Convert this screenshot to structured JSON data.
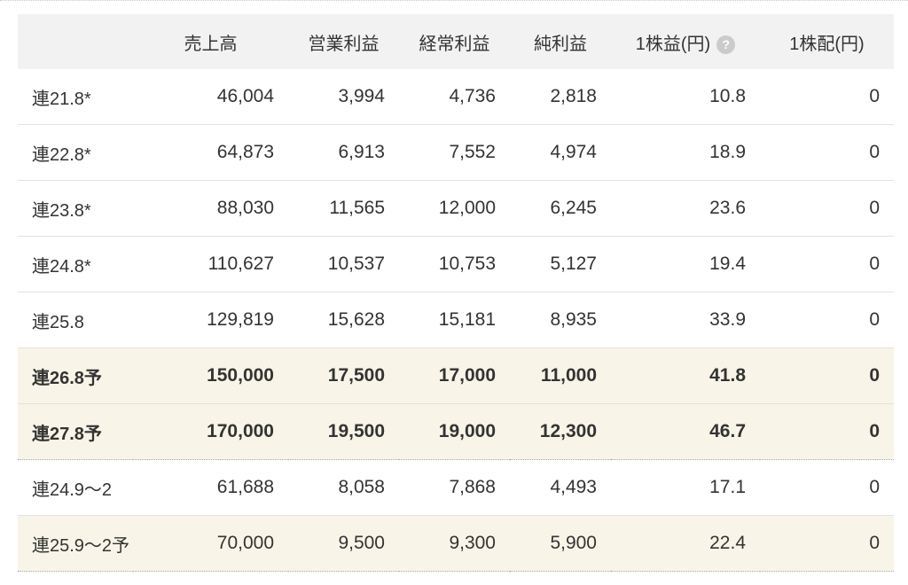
{
  "colors": {
    "header_bg": "#f2f2f2",
    "highlight_bg": "#f8f4e7",
    "text": "#333333",
    "border_solid": "#e2e2e2",
    "border_dotted": "#a9a9a9",
    "help_icon_bg": "#cbcbcb"
  },
  "table": {
    "columns": {
      "fiscal_period": "",
      "revenue": "売上高",
      "operating_profit": "営業利益",
      "ordinary_profit": "経常利益",
      "net_profit": "純利益",
      "eps": "1株益(円)",
      "dividend": "1株配(円)"
    },
    "help_icon_label": "?",
    "rows": [
      {
        "label": "連21.8*",
        "values": [
          "46,004",
          "3,994",
          "4,736",
          "2,818",
          "10.8",
          "0"
        ]
      },
      {
        "label": "連22.8*",
        "values": [
          "64,873",
          "6,913",
          "7,552",
          "4,974",
          "18.9",
          "0"
        ]
      },
      {
        "label": "連23.8*",
        "values": [
          "88,030",
          "11,565",
          "12,000",
          "6,245",
          "23.6",
          "0"
        ]
      },
      {
        "label": "連24.8*",
        "values": [
          "110,627",
          "10,537",
          "10,753",
          "5,127",
          "19.4",
          "0"
        ]
      },
      {
        "label": "連25.8",
        "values": [
          "129,819",
          "15,628",
          "15,181",
          "8,935",
          "33.9",
          "0"
        ]
      },
      {
        "label": "連26.8予",
        "values": [
          "150,000",
          "17,500",
          "17,000",
          "11,000",
          "41.8",
          "0"
        ]
      },
      {
        "label": "連27.8予",
        "values": [
          "170,000",
          "19,500",
          "19,000",
          "12,300",
          "46.7",
          "0"
        ]
      },
      {
        "label": "連24.9〜2",
        "values": [
          "61,688",
          "8,058",
          "7,868",
          "4,493",
          "17.1",
          "0"
        ]
      },
      {
        "label": "連25.9〜2予",
        "values": [
          "70,000",
          "9,500",
          "9,300",
          "5,900",
          "22.4",
          "0"
        ]
      }
    ]
  }
}
